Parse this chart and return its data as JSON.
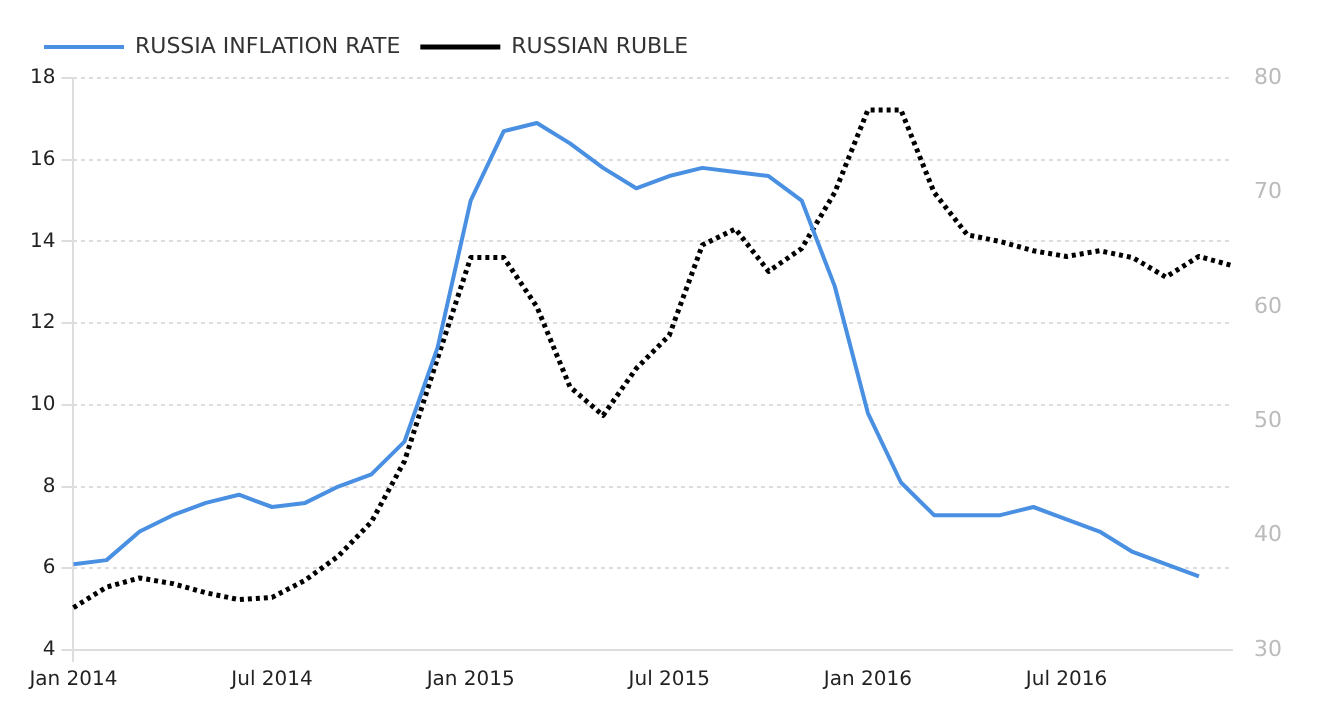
{
  "chart_data": {
    "type": "line",
    "categories": [
      "Jan 2014",
      null,
      null,
      null,
      null,
      null,
      "Jul 2014",
      null,
      null,
      null,
      null,
      null,
      "Jan 2015",
      null,
      null,
      null,
      null,
      null,
      "Jul 2015",
      null,
      null,
      null,
      null,
      null,
      "Jan 2016",
      null,
      null,
      null,
      null,
      null,
      "Jul 2016",
      null,
      null,
      null,
      null,
      null
    ],
    "series": [
      {
        "name": "RUSSIA INFLATION RATE",
        "color": "#4a90e2",
        "line_style": "solid",
        "values": [
          6.1,
          6.2,
          6.9,
          7.3,
          7.6,
          7.8,
          7.5,
          7.6,
          8.0,
          8.3,
          9.1,
          11.4,
          15.0,
          16.7,
          16.9,
          16.4,
          15.8,
          15.3,
          15.6,
          15.8,
          15.7,
          15.6,
          15.0,
          12.9,
          9.8,
          8.1,
          7.3,
          7.3,
          7.3,
          7.5,
          7.2,
          6.9,
          6.4,
          6.1,
          5.8,
          null
        ]
      },
      {
        "name": "RUSSIAN RUBLE",
        "color": "#000000",
        "line_style": "dotted",
        "axis": "y2",
        "values": [
          33.7,
          35.5,
          36.3,
          35.8,
          35.0,
          34.4,
          34.6,
          36.1,
          38.2,
          41.2,
          46.5,
          55.5,
          64.3,
          64.3,
          60.0,
          53.0,
          50.5,
          54.6,
          57.5,
          65.4,
          66.8,
          63.1,
          65.1,
          70.0,
          77.2,
          77.2,
          70.0,
          66.3,
          65.7,
          64.9,
          64.4,
          64.9,
          64.3,
          62.6,
          64.4,
          63.6
        ]
      }
    ],
    "ylim": [
      4,
      18
    ],
    "yticks": [
      4,
      6,
      8,
      10,
      12,
      14,
      16,
      18
    ],
    "y2lim": [
      30,
      80
    ],
    "y2ticks": [
      30,
      40,
      50,
      60,
      70,
      80
    ],
    "grid": true,
    "legend": "top left",
    "marker": "none"
  }
}
